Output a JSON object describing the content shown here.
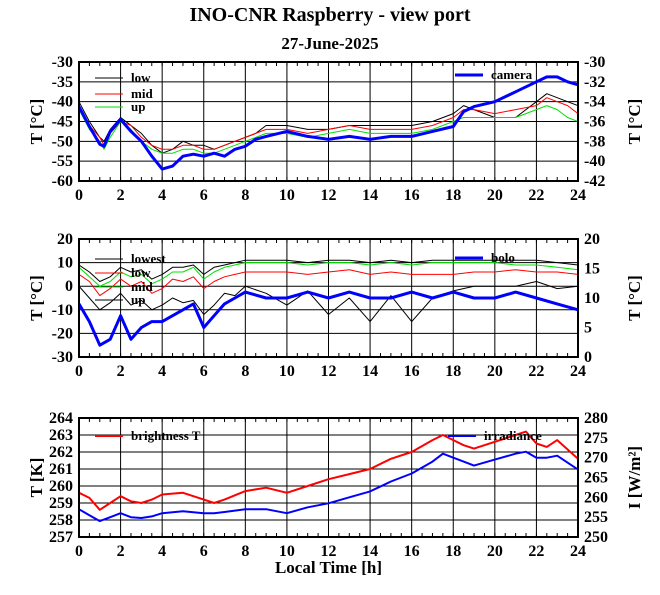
{
  "title": "INO-CNR Raspberry - view port",
  "subtitle": "27-June-2025",
  "colors": {
    "black": "#000000",
    "red": "#ff0000",
    "green": "#00e000",
    "blue": "#0000ff"
  },
  "chart_data": [
    {
      "type": "line",
      "xlabel": "",
      "ylabel": "T [°C]",
      "ylabel_right": "T [°C]",
      "xlim": [
        0,
        24
      ],
      "ylim": [
        -60,
        -30
      ],
      "ylim_right": [
        -42,
        -30
      ],
      "xticks": [
        "0",
        "2",
        "4",
        "6",
        "8",
        "10",
        "12",
        "14",
        "16",
        "18",
        "20",
        "22",
        "24"
      ],
      "yticks": [
        "-60",
        "-55",
        "-50",
        "-45",
        "-40",
        "-35",
        "-30"
      ],
      "yticks_right": [
        "-42",
        "-40",
        "-38",
        "-36",
        "-34",
        "-32",
        "-30"
      ],
      "grid": true,
      "legend_left_position": "top-left",
      "legend_right_position": "top-right",
      "x": [
        0,
        0.5,
        1,
        1.2,
        1.5,
        2,
        2.5,
        3,
        3.5,
        4,
        4.5,
        5,
        5.5,
        6,
        6.5,
        7,
        7.5,
        8,
        8.5,
        9,
        10,
        11,
        12,
        13,
        14,
        15,
        16,
        17,
        18,
        18.5,
        19,
        20,
        21,
        22,
        22.5,
        23,
        23.5,
        24
      ],
      "series": [
        {
          "name": "low",
          "axis": "left",
          "color": "black",
          "width": 1,
          "values": [
            -40,
            -45,
            -49,
            -50,
            -47,
            -44,
            -46,
            -48,
            -51,
            -53,
            -52,
            -50,
            -51,
            -51,
            -52,
            -51,
            -50,
            -49,
            -48,
            -46,
            -46,
            -47,
            -47,
            -46,
            -46,
            -46,
            -46,
            -45,
            -43,
            -41,
            -42,
            -44,
            -44,
            -40,
            -38,
            -39,
            -40,
            -41
          ]
        },
        {
          "name": "mid",
          "axis": "left",
          "color": "red",
          "width": 1,
          "values": [
            -41,
            -46,
            -49,
            -51,
            -48,
            -45,
            -46,
            -49,
            -51,
            -52,
            -52,
            -51,
            -51,
            -52,
            -52,
            -51,
            -50,
            -49,
            -48,
            -47,
            -47,
            -48,
            -47,
            -46,
            -47,
            -47,
            -47,
            -46,
            -44,
            -42,
            -42,
            -43,
            -42,
            -41,
            -39,
            -40,
            -41,
            -43
          ]
        },
        {
          "name": "up",
          "axis": "left",
          "color": "green",
          "width": 1,
          "values": [
            -42,
            -47,
            -50,
            -52,
            -49,
            -45,
            -47,
            -50,
            -52,
            -53,
            -53,
            -52,
            -52,
            -53,
            -53,
            -52,
            -51,
            -50,
            -49,
            -48,
            -48,
            -49,
            -48,
            -47,
            -48,
            -48,
            -48,
            -47,
            -45,
            -44,
            -44,
            -44,
            -44,
            -42,
            -41,
            -42,
            -44,
            -45
          ]
        },
        {
          "name": "camera",
          "axis": "right",
          "color": "blue",
          "width": 3,
          "values": [
            -34.5,
            -36.5,
            -38.3,
            -38.5,
            -37,
            -35.8,
            -37,
            -38,
            -39.5,
            -40.8,
            -40.5,
            -39.5,
            -39.3,
            -39.5,
            -39.2,
            -39.5,
            -38.8,
            -38.5,
            -37.8,
            -37.5,
            -37,
            -37.5,
            -37.8,
            -37.5,
            -37.8,
            -37.5,
            -37.5,
            -37,
            -36.5,
            -35,
            -34.5,
            -34,
            -33,
            -32,
            -31.5,
            -31.5,
            -32,
            -32.3
          ]
        }
      ]
    },
    {
      "type": "line",
      "xlabel": "",
      "ylabel": "T [°C]",
      "ylabel_right": "T [°C]",
      "xlim": [
        0,
        24
      ],
      "ylim": [
        -30,
        20
      ],
      "ylim_right": [
        0,
        20
      ],
      "xticks": [
        "0",
        "2",
        "4",
        "6",
        "8",
        "10",
        "12",
        "14",
        "16",
        "18",
        "20",
        "22",
        "24"
      ],
      "yticks": [
        "-30",
        "-20",
        "-10",
        "0",
        "10",
        "20"
      ],
      "yticks_right": [
        "0",
        "5",
        "10",
        "15",
        "20"
      ],
      "grid": true,
      "legend_left_position": "top-left",
      "legend_right_position": "top-right",
      "x": [
        0,
        0.5,
        1,
        1.5,
        2,
        2.5,
        3,
        3.5,
        4,
        4.5,
        5,
        5.5,
        6,
        6.5,
        7,
        7.5,
        8,
        9,
        10,
        11,
        12,
        13,
        14,
        15,
        16,
        17,
        18,
        19,
        20,
        21,
        22,
        23,
        24
      ],
      "series": [
        {
          "name": "lowest",
          "axis": "left",
          "color": "black",
          "width": 1,
          "values": [
            0,
            -5,
            -10,
            -7,
            -3,
            -8,
            -6,
            -10,
            -8,
            -5,
            -7,
            -6,
            -12,
            -8,
            -3,
            -4,
            0,
            -3,
            -8,
            -2,
            -12,
            -5,
            -15,
            -4,
            -15,
            -5,
            -2,
            0,
            0,
            0,
            2,
            -1,
            0
          ]
        },
        {
          "name": "low",
          "axis": "left",
          "color": "red",
          "width": 1,
          "values": [
            5,
            2,
            -4,
            -1,
            3,
            0,
            2,
            -3,
            -1,
            3,
            2,
            4,
            -1,
            2,
            4,
            5,
            6,
            6,
            6,
            5,
            6,
            7,
            5,
            6,
            5,
            5,
            5,
            6,
            6,
            7,
            6,
            6,
            5
          ]
        },
        {
          "name": "mid",
          "axis": "left",
          "color": "green",
          "width": 1,
          "values": [
            8,
            4,
            0,
            2,
            6,
            4,
            5,
            1,
            3,
            6,
            6,
            8,
            3,
            6,
            8,
            9,
            10,
            10,
            10,
            9,
            10,
            10,
            9,
            10,
            9,
            10,
            10,
            10,
            10,
            9,
            9,
            8,
            7
          ]
        },
        {
          "name": "up",
          "axis": "left",
          "color": "black",
          "width": 1,
          "values": [
            9,
            6,
            2,
            4,
            8,
            6,
            7,
            3,
            5,
            8,
            8,
            9,
            5,
            8,
            9,
            10,
            11,
            11,
            11,
            10,
            11,
            11,
            10,
            11,
            10,
            11,
            11,
            11,
            11,
            11,
            11,
            10,
            9
          ]
        },
        {
          "name": "bolo",
          "axis": "right",
          "color": "blue",
          "width": 3,
          "values": [
            9,
            6,
            2,
            3,
            7,
            3,
            5,
            6,
            6,
            7,
            8,
            9,
            5,
            7,
            9,
            10,
            11,
            10,
            10,
            11,
            10,
            11,
            10,
            10,
            11,
            10,
            11,
            10,
            10,
            11,
            10,
            9,
            8
          ]
        }
      ]
    },
    {
      "type": "line",
      "xlabel": "Local Time [h]",
      "ylabel": "T [K]",
      "ylabel_right": "I [W/m²]",
      "xlim": [
        0,
        24
      ],
      "ylim": [
        257,
        264
      ],
      "ylim_right": [
        250,
        280
      ],
      "xticks": [
        "0",
        "2",
        "4",
        "6",
        "8",
        "10",
        "12",
        "14",
        "16",
        "18",
        "20",
        "22",
        "24"
      ],
      "yticks": [
        "257",
        "258",
        "259",
        "260",
        "261",
        "262",
        "263",
        "264"
      ],
      "yticks_right": [
        "250",
        "255",
        "260",
        "265",
        "270",
        "275",
        "280"
      ],
      "grid": true,
      "legend_left_position": "top-left",
      "legend_right_position": "top-right",
      "x": [
        0,
        0.5,
        1,
        1.5,
        2,
        2.5,
        3,
        3.5,
        4,
        5,
        6,
        6.5,
        7,
        8,
        9,
        10,
        11,
        12,
        13,
        14,
        15,
        16,
        17,
        17.5,
        18,
        18.5,
        19,
        20,
        21,
        21.5,
        22,
        22.5,
        23,
        24
      ],
      "series": [
        {
          "name": "brightness T",
          "axis": "left",
          "color": "red",
          "width": 2,
          "values": [
            259.6,
            259.3,
            258.6,
            259.0,
            259.4,
            259.1,
            259.0,
            259.2,
            259.5,
            259.6,
            259.2,
            259.0,
            259.2,
            259.7,
            259.9,
            259.6,
            260.0,
            260.4,
            260.7,
            261.0,
            261.6,
            262.0,
            262.7,
            263.0,
            262.7,
            262.4,
            262.2,
            262.6,
            263.0,
            263.2,
            262.5,
            262.3,
            262.7,
            261.6
          ]
        },
        {
          "name": "irradiance",
          "axis": "right",
          "color": "blue",
          "width": 2,
          "values": [
            257,
            255.5,
            254,
            255,
            256,
            255,
            254.8,
            255.2,
            256,
            256.5,
            256,
            256,
            256.3,
            257,
            257,
            256,
            257.5,
            258.5,
            260,
            261.5,
            264,
            266,
            269,
            271,
            270,
            269,
            268,
            269.5,
            271,
            271.5,
            270,
            270,
            270.5,
            267
          ]
        }
      ]
    }
  ]
}
